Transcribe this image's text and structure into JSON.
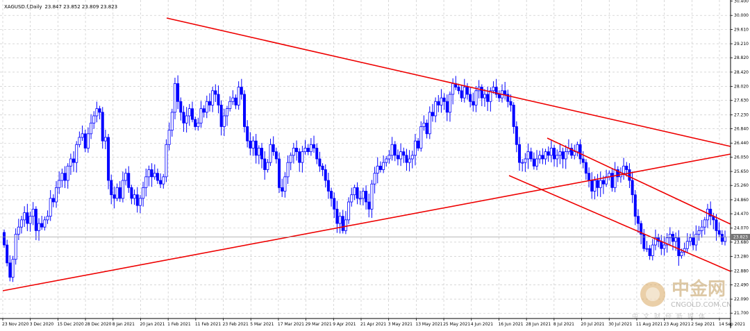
{
  "header": {
    "symbol": "XAGUSD.f,Daily",
    "ohlc": "23.847 23.852 23.809 23.823"
  },
  "current_price": "23.823",
  "colors": {
    "background": "#ffffff",
    "grid": "#c0c0c0",
    "candle": "#0000ff",
    "trendline": "#ee0000",
    "price_tag": "#777777"
  },
  "watermark": {
    "chinese": "中金网",
    "subtitle": "中文财经新媒体",
    "url": "CNGOLD.COM.CN"
  },
  "chart_data": {
    "type": "candlestick",
    "x_ticks": [
      "23 Nov 2020",
      "3 Dec 2020",
      "15 Dec 2020",
      "28 Dec 2020",
      "8 Jan 2021",
      "20 Jan 2021",
      "1 Feb 2021",
      "11 Feb 2021",
      "23 Feb 2021",
      "5 Mar 2021",
      "17 Mar 2021",
      "29 Mar 2021",
      "9 Apr 2021",
      "21 Apr 2021",
      "3 May 2021",
      "13 May 2021",
      "25 May 2021",
      "4 Jun 2021",
      "16 Jun 2021",
      "28 Jun 2021",
      "8 Jul 2021",
      "20 Jul 2021",
      "30 Jul 2021",
      "11 Aug 2021",
      "23 Aug 2021",
      "2 Sep 2021",
      "14 Sep 2021"
    ],
    "y_ticks": [
      "30.400",
      "30.000",
      "29.610",
      "29.210",
      "28.820",
      "28.420",
      "28.020",
      "27.630",
      "27.230",
      "26.840",
      "26.440",
      "26.050",
      "25.650",
      "25.260",
      "24.860",
      "24.470",
      "24.070",
      "23.680",
      "23.280",
      "22.880",
      "22.490",
      "22.090",
      "21.700"
    ],
    "ylim": [
      21.55,
      30.43
    ],
    "closes": [
      23.6,
      23.1,
      22.7,
      23.2,
      23.9,
      24.1,
      24.3,
      24.5,
      24.2,
      24.4,
      24.6,
      24.0,
      24.2,
      24.1,
      24.3,
      24.4,
      24.9,
      24.8,
      25.2,
      25.4,
      25.6,
      25.4,
      25.8,
      26.0,
      25.9,
      26.4,
      26.6,
      26.7,
      26.3,
      26.7,
      27.0,
      27.2,
      27.4,
      27.3,
      26.5,
      26.6,
      25.4,
      25.0,
      24.9,
      25.2,
      24.9,
      25.4,
      25.6,
      25.2,
      24.9,
      25.0,
      24.7,
      24.9,
      25.2,
      25.5,
      25.7,
      25.5,
      25.6,
      25.4,
      25.3,
      25.5,
      26.4,
      26.8,
      27.3,
      28.1,
      27.6,
      27.3,
      27.0,
      27.2,
      27.4,
      27.1,
      26.9,
      27.0,
      27.4,
      27.3,
      27.6,
      27.5,
      27.9,
      27.8,
      27.5,
      26.9,
      27.2,
      27.4,
      27.6,
      27.7,
      27.5,
      28.0,
      27.8,
      26.9,
      26.5,
      26.3,
      26.5,
      26.1,
      26.3,
      26.0,
      25.7,
      25.9,
      26.4,
      26.2,
      26.0,
      25.2,
      25.1,
      25.5,
      25.9,
      26.1,
      26.3,
      26.2,
      25.9,
      26.2,
      26.3,
      26.2,
      26.4,
      26.3,
      26.0,
      25.8,
      25.7,
      25.4,
      25.1,
      24.9,
      24.6,
      24.2,
      24.4,
      24.0,
      24.3,
      24.8,
      25.0,
      25.2,
      24.9,
      24.9,
      25.1,
      24.8,
      24.6,
      25.3,
      25.6,
      25.8,
      25.7,
      25.9,
      26.0,
      26.1,
      26.4,
      26.1,
      26.0,
      26.2,
      26.1,
      25.9,
      26.0,
      26.1,
      26.5,
      26.3,
      26.9,
      27.0,
      26.7,
      27.3,
      27.2,
      27.6,
      27.5,
      27.7,
      27.6,
      27.3,
      27.8,
      28.1,
      28.0,
      27.9,
      27.7,
      28.0,
      27.8,
      27.6,
      27.5,
      27.9,
      28.0,
      27.7,
      27.8,
      27.6,
      27.9,
      28.0,
      27.8,
      27.7,
      27.9,
      27.8,
      27.6,
      27.5,
      26.9,
      26.4,
      25.9,
      25.9,
      26.0,
      26.2,
      26.0,
      25.8,
      26.0,
      26.1,
      26.0,
      26.2,
      26.1,
      26.3,
      26.0,
      26.1,
      26.2,
      26.0,
      26.2,
      26.3,
      26.1,
      26.2,
      26.4,
      26.0,
      25.9,
      25.6,
      25.4,
      25.1,
      25.4,
      25.2,
      25.4,
      25.3,
      25.5,
      25.6,
      25.2,
      25.7,
      25.5,
      25.6,
      25.8,
      25.7,
      25.4,
      25.0,
      24.4,
      24.2,
      23.9,
      23.5,
      23.5,
      23.3,
      23.6,
      23.8,
      23.7,
      23.5,
      23.6,
      23.8,
      23.9,
      23.7,
      23.8,
      23.3,
      23.4,
      23.5,
      23.7,
      23.8,
      23.6,
      23.9,
      24.0,
      24.1,
      24.3,
      24.6,
      24.4,
      24.3,
      24.0,
      23.9,
      23.7,
      23.823
    ]
  }
}
